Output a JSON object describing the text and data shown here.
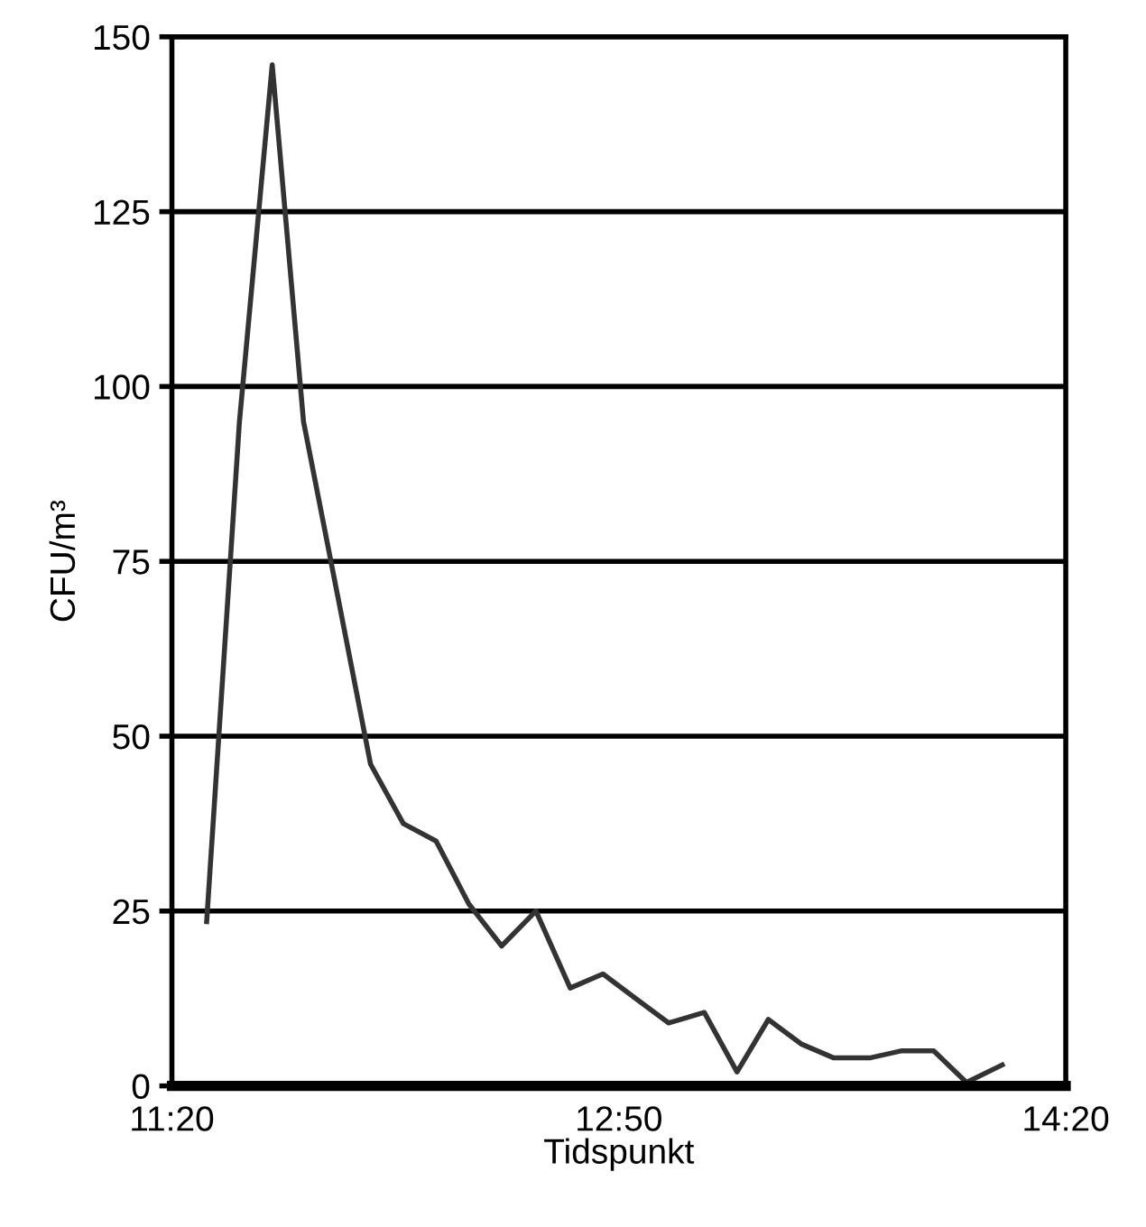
{
  "chart_data": {
    "type": "line",
    "xlabel": "Tidspunkt",
    "ylabel": "CFU/m³",
    "x": [
      11.45,
      11.56,
      11.67,
      11.775,
      11.89,
      12.0,
      12.11,
      12.22,
      12.33,
      12.44,
      12.555,
      12.67,
      12.78,
      12.89,
      13.0,
      13.12,
      13.23,
      13.335,
      13.445,
      13.555,
      13.675,
      13.78,
      13.89,
      14.0,
      14.12
    ],
    "series": [
      {
        "color": "#333333",
        "values": [
          23.5,
          95,
          146,
          95,
          70,
          46,
          37.5,
          35,
          26,
          20,
          25,
          14,
          16,
          12.5,
          9,
          10.5,
          2,
          9.5,
          6,
          4,
          4,
          5,
          5,
          0.5,
          3
        ]
      }
    ],
    "xlim": [
      11.3333,
      14.3333
    ],
    "xticks": [
      {
        "value": 11.3333,
        "label": "11:20"
      },
      {
        "value": 11.5,
        "label": null
      },
      {
        "value": 11.6667,
        "label": null
      },
      {
        "value": 11.8333,
        "label": null
      },
      {
        "value": 12.0,
        "label": null
      },
      {
        "value": 12.1667,
        "label": null
      },
      {
        "value": 12.3333,
        "label": null
      },
      {
        "value": 12.5,
        "label": null
      },
      {
        "value": 12.6667,
        "label": null
      },
      {
        "value": 12.8333,
        "label": "12:50"
      },
      {
        "value": 13.0,
        "label": null
      },
      {
        "value": 13.1667,
        "label": null
      },
      {
        "value": 13.3333,
        "label": null
      },
      {
        "value": 13.5,
        "label": null
      },
      {
        "value": 13.6667,
        "label": null
      },
      {
        "value": 13.8333,
        "label": null
      },
      {
        "value": 14.0,
        "label": null
      },
      {
        "value": 14.1667,
        "label": null
      },
      {
        "value": 14.3333,
        "label": "14:20"
      }
    ],
    "ylim": [
      0,
      150
    ],
    "yticks": [
      0,
      25,
      50,
      75,
      100,
      125,
      150
    ],
    "grid": "y",
    "marker": "none",
    "line_style": "solid",
    "legend": false
  }
}
